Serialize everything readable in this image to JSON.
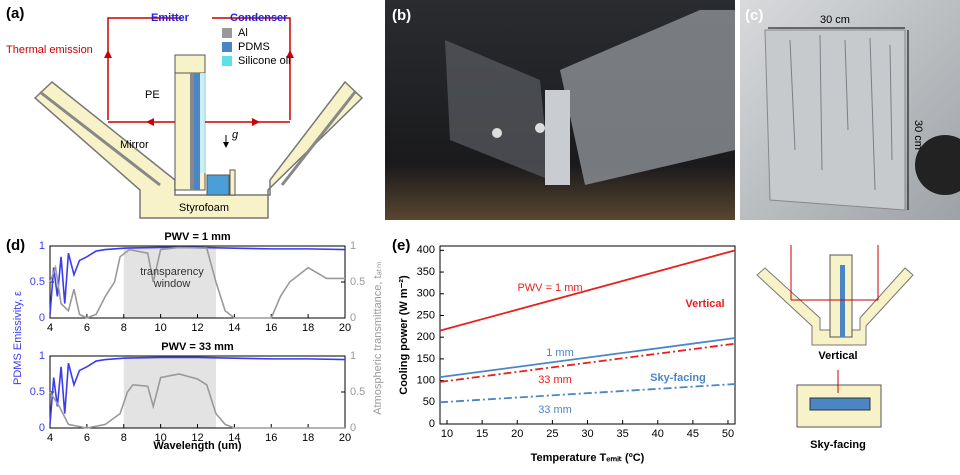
{
  "panel_labels": [
    "(a)",
    "(b)",
    "(c)",
    "(d)",
    "(e)"
  ],
  "diagram": {
    "emitter": "Emitter",
    "condenser": "Condenser",
    "thermal_emission": "Thermal emission",
    "pe": "PE",
    "mirror": "Mirror",
    "styrofoam": "Styrofoam",
    "gravity": "g",
    "legend": [
      "Al",
      "PDMS",
      "Silicone oil"
    ]
  },
  "photo_c": {
    "width": "30 cm",
    "height": "30 cm"
  },
  "insets": {
    "vertical": "Vertical",
    "sky_facing": "Sky-facing"
  },
  "chart_data": [
    {
      "type": "line",
      "title": "PWV = 1 mm",
      "ylabel": "PDMS Emissivity, ε",
      "y2label": "Atmospheric transmittance, tₐₜₘ",
      "xlim": [
        4,
        20
      ],
      "xticks": [
        4,
        6,
        8,
        10,
        12,
        14,
        16,
        18,
        20
      ],
      "ylim": [
        0,
        1
      ],
      "yticks": [
        0,
        0.5,
        1
      ],
      "y2lim": [
        0,
        1
      ],
      "y2ticks": [
        0,
        0.5,
        1
      ],
      "shaded_region": [
        8,
        13
      ],
      "annotations": [
        "transparency",
        "window"
      ],
      "series": [
        {
          "color": "#3b3bf0",
          "x": [
            4.0,
            4.2,
            4.4,
            4.6,
            4.8,
            5.0,
            5.3,
            5.6,
            6,
            6.5,
            7,
            8,
            10,
            12,
            14,
            16,
            18,
            20
          ],
          "values": [
            0.05,
            0.7,
            0.3,
            0.85,
            0.2,
            0.9,
            0.6,
            0.8,
            0.85,
            0.93,
            0.95,
            0.97,
            0.98,
            0.98,
            0.97,
            0.96,
            0.96,
            0.95
          ]
        },
        {
          "color": "#9a9a9a",
          "axis": "y2",
          "x": [
            4,
            4.3,
            4.6,
            5,
            5.3,
            5.6,
            6,
            6.5,
            7,
            7.5,
            7.8,
            8.3,
            9.3,
            9.6,
            10,
            11,
            12.5,
            13,
            13.5,
            14,
            16,
            16.5,
            17,
            18,
            19,
            20
          ],
          "values": [
            0.5,
            0.7,
            0.2,
            0.1,
            0.4,
            0.05,
            0,
            0.05,
            0.3,
            0.5,
            0.85,
            0.95,
            0.9,
            0.5,
            0.95,
            0.98,
            0.97,
            0.5,
            0.1,
            0,
            0,
            0.3,
            0.5,
            0.7,
            0.55,
            0.55
          ]
        }
      ]
    },
    {
      "type": "line",
      "title": "PWV = 33 mm",
      "xlabel": "Wavelength (um)",
      "xlim": [
        4,
        20
      ],
      "xticks": [
        4,
        6,
        8,
        10,
        12,
        14,
        16,
        18,
        20
      ],
      "ylim": [
        0,
        1
      ],
      "yticks": [
        0,
        0.5,
        1
      ],
      "y2lim": [
        0,
        1
      ],
      "y2ticks": [
        0,
        0.5,
        1
      ],
      "shaded_region": [
        8,
        13
      ],
      "series": [
        {
          "color": "#3b3bf0",
          "x": [
            4.0,
            4.2,
            4.4,
            4.6,
            4.8,
            5.0,
            5.3,
            5.6,
            6,
            6.5,
            7,
            8,
            10,
            12,
            14,
            16,
            18,
            20
          ],
          "values": [
            0.05,
            0.7,
            0.3,
            0.85,
            0.2,
            0.9,
            0.6,
            0.8,
            0.85,
            0.93,
            0.95,
            0.97,
            0.98,
            0.98,
            0.97,
            0.96,
            0.96,
            0.95
          ]
        },
        {
          "color": "#9a9a9a",
          "axis": "y2",
          "x": [
            4,
            4.5,
            5,
            6,
            7,
            7.8,
            8.2,
            8.5,
            9.3,
            9.6,
            10,
            11,
            12,
            12.5,
            13,
            13.5,
            14,
            20
          ],
          "values": [
            0.5,
            0.3,
            0.05,
            0,
            0.05,
            0.2,
            0.5,
            0.6,
            0.58,
            0.3,
            0.7,
            0.75,
            0.68,
            0.6,
            0.2,
            0.05,
            0,
            0
          ]
        }
      ]
    },
    {
      "type": "line",
      "xlabel": "Temperature Tₑₘᵢₜ (ºC)",
      "ylabel": "Cooling power (W m⁻²)",
      "xlim": [
        9,
        51
      ],
      "xticks": [
        10,
        15,
        20,
        25,
        30,
        35,
        40,
        45,
        50
      ],
      "ylim": [
        0,
        410
      ],
      "yticks": [
        0,
        50,
        100,
        150,
        200,
        250,
        300,
        350,
        400
      ],
      "annotations": [
        "Vertical",
        "Sky-facing"
      ],
      "series": [
        {
          "name": "PWV = 1 mm",
          "color": "#e8201f",
          "dash": "solid",
          "x": [
            9,
            51
          ],
          "values": [
            215,
            400
          ]
        },
        {
          "name": "1 mm",
          "color": "#4a86c5",
          "dash": "solid",
          "x": [
            9,
            51
          ],
          "values": [
            108,
            198
          ]
        },
        {
          "name": "33 mm",
          "color": "#e8201f",
          "dash": "dashdot",
          "x": [
            9,
            51
          ],
          "values": [
            97,
            185
          ]
        },
        {
          "name": "33 mm",
          "color": "#4a86c5",
          "dash": "dashdot",
          "x": [
            9,
            51
          ],
          "values": [
            50,
            92
          ]
        }
      ]
    }
  ]
}
